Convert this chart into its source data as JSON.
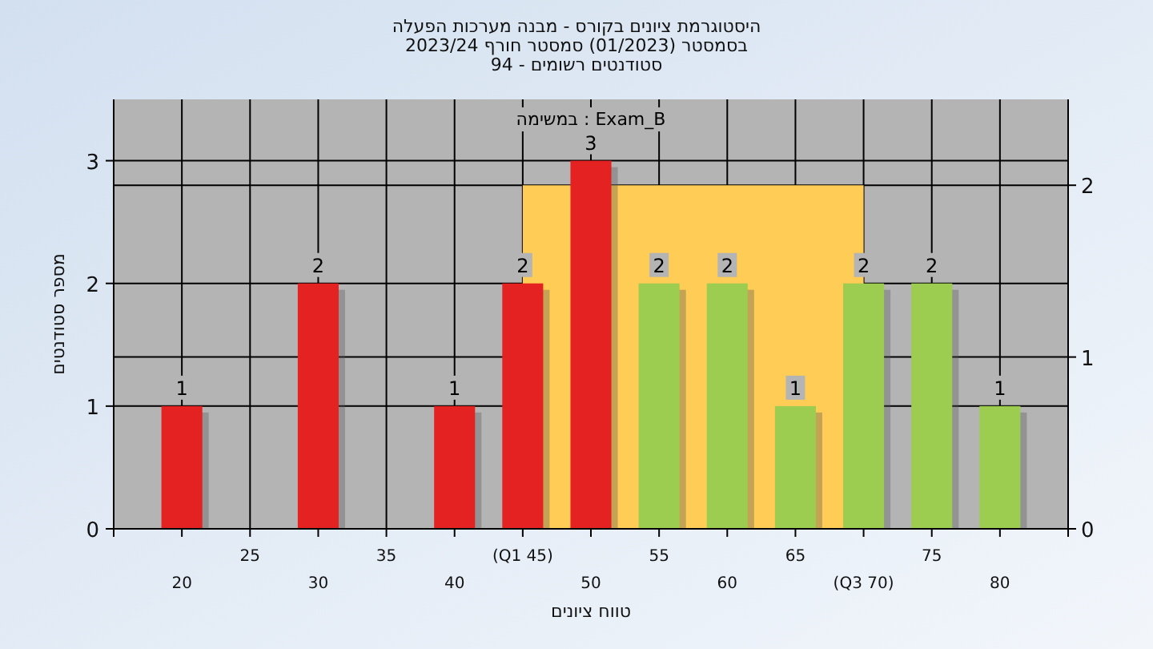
{
  "chart_data": {
    "type": "bar",
    "title": "היסטוגרמת ציונים בקורס - מבנה מערכות הפעלה\nבסמסטר  (01/2023)  סמסטר חורף 2023/24\nסטודנטים רשומים - 94",
    "xlabel": "טווח ציונים",
    "ylabel": "מספר סטודנטים",
    "annotations": [
      "במשימה : Exam_B"
    ],
    "categories": [
      "20",
      "25",
      "30",
      "35",
      "40",
      "(Q1 45)",
      "50",
      "55",
      "60",
      "65",
      "(Q3 70)",
      "75",
      "80"
    ],
    "series": [
      {
        "type": "area",
        "axis": "y2",
        "color": "#ffcc55",
        "values": [
          null,
          null,
          null,
          null,
          null,
          2,
          null,
          2,
          2,
          2,
          2,
          null,
          null
        ]
      },
      {
        "colors": [
          "#e52222",
          null,
          "#e52222",
          null,
          "#e52222",
          "#e52222",
          "#e52222",
          "#9ccc50",
          "#9ccc50",
          "#9ccc50",
          "#9ccc50",
          "#9ccc50",
          "#9ccc50"
        ],
        "values": [
          1,
          null,
          2,
          null,
          1,
          2,
          3,
          2,
          2,
          1,
          2,
          2,
          1
        ],
        "value_labels": [
          "1",
          null,
          "2",
          null,
          "1",
          "2",
          "3",
          "2",
          "2",
          "1",
          "2",
          "2",
          "1"
        ]
      }
    ],
    "ylim": [
      0,
      3.5
    ],
    "yticks": [
      0,
      1,
      2,
      3
    ],
    "y2lim": [
      0,
      2.5
    ],
    "y2ticks": [
      0,
      1,
      2
    ],
    "grid": true
  }
}
